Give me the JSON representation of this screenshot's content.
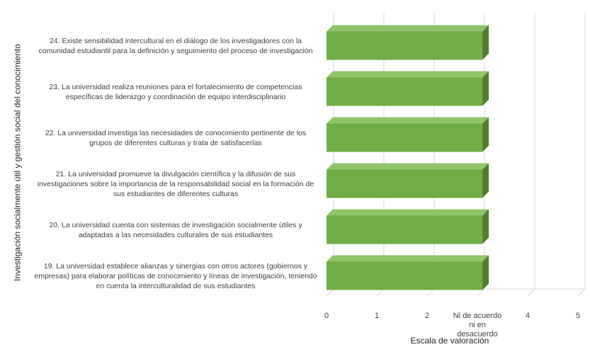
{
  "chart_data": {
    "type": "bar",
    "orientation": "horizontal",
    "style": "3d",
    "y_label": "Investigación socialmente útil y gestión social del conocimiento",
    "x_label": "Escala de valoración",
    "categories": [
      "24. Existe sensibilidad intercultural en el diálogo de los investigadores con la comunidad estudiantil para la definición y seguimiento del proceso de investigación",
      "23. La universidad realiza reuniones para el fortalecimiento de competencias específicas de liderazgo y coordinación de equipo interdisciplinario",
      "22. La universidad investiga las necesidades de conocimiento pertinente de los grupos de diferentes culturas y trata de satisfacerlas",
      "21. La universidad promueve la divulgación científica y la difusión de sus investigaciones sobre la importancia de la responsabilidad social en la formación de sus estudiantes de diferentes culturas",
      "20. La universidad cuenta con sistemas de investigación socialmente útiles y adaptadas a las necesidades culturales de sus estudiantes",
      "19. La universidad establece alianzas y sinergias con otros actores (gobiernos y empresas) para elaborar políticas de conocimiento y líneas de investigación, teniendo en cuenta la interculturalidad de sus estudiantes"
    ],
    "values": [
      3.1,
      3.1,
      3.1,
      3.1,
      3.1,
      3.1
    ],
    "color": "#70ad47",
    "xlim": [
      0,
      5
    ],
    "xticks": [
      0,
      1,
      2,
      {
        "value": 3,
        "label": "Ni de acuerdo ni en desacuerdo"
      },
      4,
      5
    ],
    "grid": true
  }
}
